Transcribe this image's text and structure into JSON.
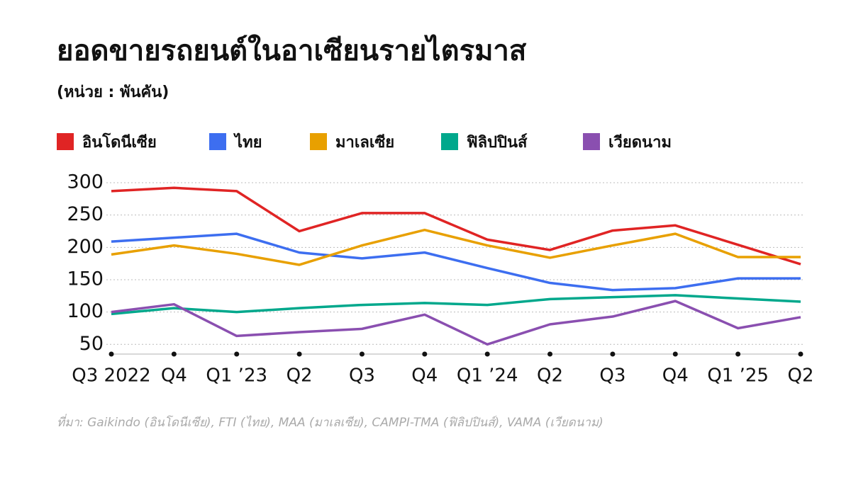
{
  "chart_data": {
    "type": "line",
    "title": "ยอดขายรถยนต์ในอาเซียนรายไตรมาส",
    "subtitle": "(หน่วย : พันคัน)",
    "source": "ที่มา: Gaikindo (อินโดนีเซีย), FTI (ไทย), MAA (มาเลเซีย), CAMPI-TMA (ฟิลิปปินส์), VAMA (เวียดนาม)",
    "categories": [
      "Q3 2022",
      "Q4",
      "Q1 ’23",
      "Q2",
      "Q3",
      "Q4",
      "Q1 ’24",
      "Q2",
      "Q3",
      "Q4",
      "Q1 ’25",
      "Q2"
    ],
    "series": [
      {
        "name": "อินโดนีเซีย",
        "color": "#e02424",
        "values": [
          287,
          292,
          287,
          225,
          253,
          253,
          212,
          196,
          226,
          234,
          204,
          174
        ]
      },
      {
        "name": "ไทย",
        "color": "#3d6ef0",
        "values": [
          209,
          215,
          221,
          192,
          183,
          192,
          168,
          145,
          134,
          137,
          152,
          152
        ]
      },
      {
        "name": "มาเลเซีย",
        "color": "#e8a000",
        "values": [
          189,
          203,
          190,
          173,
          203,
          227,
          203,
          184,
          203,
          221,
          185,
          185
        ]
      },
      {
        "name": "ฟิลิปปินส์",
        "color": "#00a88c",
        "values": [
          97,
          106,
          100,
          106,
          111,
          114,
          111,
          120,
          123,
          126,
          121,
          116
        ]
      },
      {
        "name": "เวียดนาม",
        "color": "#8a4fb0",
        "values": [
          100,
          112,
          63,
          69,
          74,
          96,
          50,
          81,
          93,
          117,
          75,
          92
        ]
      }
    ],
    "ylim": [
      35,
      300
    ],
    "yticks": [
      50,
      100,
      150,
      200,
      250,
      300
    ],
    "grid": true
  }
}
